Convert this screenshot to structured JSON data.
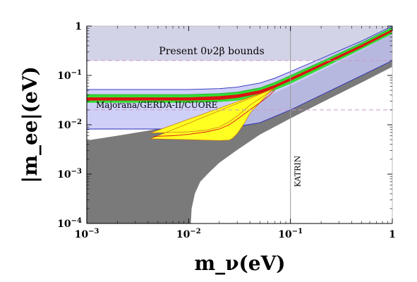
{
  "chart_data": {
    "type": "area",
    "xlabel": "m_ν(eV)",
    "ylabel": "|m_ee|(eV)",
    "xscale": "log",
    "yscale": "log",
    "xlim": [
      0.001,
      1
    ],
    "ylim": [
      0.0001,
      1
    ],
    "x_ticks": [
      {
        "value": 0.001,
        "base": "10",
        "exp": "−3"
      },
      {
        "value": 0.01,
        "base": "10",
        "exp": "−2"
      },
      {
        "value": 0.1,
        "base": "10",
        "exp": "−1"
      },
      {
        "value": 1,
        "base": "1",
        "exp": ""
      }
    ],
    "y_ticks": [
      {
        "value": 0.0001,
        "base": "10",
        "exp": "−4"
      },
      {
        "value": 0.001,
        "base": "10",
        "exp": "−3"
      },
      {
        "value": 0.01,
        "base": "10",
        "exp": "−2"
      },
      {
        "value": 0.1,
        "base": "10",
        "exp": "−1"
      },
      {
        "value": 1,
        "base": "1",
        "exp": ""
      }
    ],
    "annotations": {
      "bounds": "Present 0ν2β bounds",
      "future": "Majorana/GERDA-II/CUORE",
      "katrin": "KATRIN"
    },
    "horizontal_lines": {
      "present_bound": 0.2,
      "future_sensitivity": 0.02
    },
    "katrin_line_x": 0.1,
    "colors": {
      "gray_region": "#7a7a7a",
      "blue_band": "#c4c6f5",
      "blue_edge": "#2a2ab8",
      "lavender_bound": "#d3d3e8",
      "green": "#33dd33",
      "red": "#dd1111",
      "yellow": "#ffff22",
      "dashed": "#c999c9"
    },
    "gray_region": {
      "upper": [
        [
          0.001,
          0.0048
        ],
        [
          0.002,
          0.006
        ],
        [
          0.005,
          0.0082
        ],
        [
          0.01,
          0.0112
        ],
        [
          0.02,
          0.016
        ],
        [
          0.05,
          0.032
        ],
        [
          0.1,
          0.062
        ],
        [
          0.2,
          0.125
        ],
        [
          0.5,
          0.32
        ],
        [
          1,
          0.72
        ]
      ],
      "lower": [
        [
          0.0105,
          0.0001
        ],
        [
          0.0107,
          0.0002
        ],
        [
          0.0115,
          0.0004
        ],
        [
          0.013,
          0.0007
        ],
        [
          0.016,
          0.0011
        ],
        [
          0.02,
          0.0017
        ],
        [
          0.03,
          0.0031
        ],
        [
          0.05,
          0.0063
        ],
        [
          0.1,
          0.0135
        ],
        [
          0.2,
          0.028
        ],
        [
          0.5,
          0.072
        ],
        [
          1,
          0.15
        ]
      ]
    },
    "blue_band": {
      "upper": [
        [
          0.001,
          0.052
        ],
        [
          0.01,
          0.052
        ],
        [
          0.02,
          0.054
        ],
        [
          0.03,
          0.058
        ],
        [
          0.05,
          0.07
        ],
        [
          0.07,
          0.088
        ],
        [
          0.1,
          0.12
        ],
        [
          0.2,
          0.22
        ],
        [
          0.5,
          0.5
        ],
        [
          1,
          1
        ]
      ],
      "lower": [
        [
          0.001,
          0.0082
        ],
        [
          0.01,
          0.0082
        ],
        [
          0.02,
          0.0086
        ],
        [
          0.03,
          0.0092
        ],
        [
          0.05,
          0.011
        ],
        [
          0.1,
          0.02
        ],
        [
          0.2,
          0.04
        ],
        [
          0.5,
          0.1
        ],
        [
          1,
          0.2
        ]
      ]
    },
    "green_band": {
      "upper": [
        [
          0.001,
          0.041
        ],
        [
          0.01,
          0.041
        ],
        [
          0.02,
          0.043
        ],
        [
          0.03,
          0.046
        ],
        [
          0.05,
          0.056
        ],
        [
          0.07,
          0.072
        ],
        [
          0.1,
          0.1
        ],
        [
          0.2,
          0.19
        ],
        [
          0.5,
          0.46
        ],
        [
          1,
          0.95
        ]
      ],
      "lower": [
        [
          0.001,
          0.028
        ],
        [
          0.01,
          0.028
        ],
        [
          0.02,
          0.029
        ],
        [
          0.03,
          0.031
        ],
        [
          0.05,
          0.038
        ],
        [
          0.07,
          0.05
        ],
        [
          0.1,
          0.068
        ],
        [
          0.2,
          0.135
        ],
        [
          0.5,
          0.34
        ],
        [
          1,
          0.7
        ]
      ]
    },
    "red_band": {
      "upper": [
        [
          0.001,
          0.036
        ],
        [
          0.01,
          0.036
        ],
        [
          0.02,
          0.038
        ],
        [
          0.03,
          0.041
        ],
        [
          0.05,
          0.05
        ],
        [
          0.07,
          0.064
        ],
        [
          0.1,
          0.089
        ],
        [
          0.2,
          0.172
        ],
        [
          0.5,
          0.42
        ],
        [
          1,
          0.86
        ]
      ],
      "lower": [
        [
          0.001,
          0.031
        ],
        [
          0.01,
          0.031
        ],
        [
          0.02,
          0.032
        ],
        [
          0.03,
          0.035
        ],
        [
          0.05,
          0.043
        ],
        [
          0.07,
          0.056
        ],
        [
          0.1,
          0.078
        ],
        [
          0.2,
          0.152
        ],
        [
          0.5,
          0.37
        ],
        [
          1,
          0.77
        ]
      ]
    },
    "yellow_band": {
      "upper": [
        [
          0.0042,
          0.0068
        ],
        [
          0.007,
          0.007
        ],
        [
          0.01,
          0.0072
        ],
        [
          0.015,
          0.0078
        ],
        [
          0.02,
          0.009
        ],
        [
          0.025,
          0.0115
        ],
        [
          0.03,
          0.015
        ],
        [
          0.04,
          0.025
        ],
        [
          0.05,
          0.034
        ],
        [
          0.06,
          0.044
        ],
        [
          0.07,
          0.055
        ]
      ],
      "lower": [
        [
          0.07,
          0.055
        ],
        [
          0.06,
          0.042
        ],
        [
          0.05,
          0.028
        ],
        [
          0.04,
          0.017
        ],
        [
          0.035,
          0.0105
        ],
        [
          0.03,
          0.0066
        ],
        [
          0.027,
          0.0053
        ],
        [
          0.025,
          0.0049
        ],
        [
          0.02,
          0.0048
        ],
        [
          0.01,
          0.005
        ],
        [
          0.0042,
          0.0052
        ]
      ],
      "center": [
        [
          0.0045,
          0.0058
        ],
        [
          0.007,
          0.006
        ],
        [
          0.01,
          0.0064
        ],
        [
          0.015,
          0.0072
        ],
        [
          0.02,
          0.0082
        ],
        [
          0.025,
          0.01
        ],
        [
          0.03,
          0.013
        ],
        [
          0.04,
          0.02
        ],
        [
          0.05,
          0.028
        ],
        [
          0.06,
          0.037
        ],
        [
          0.07,
          0.05
        ]
      ]
    }
  }
}
